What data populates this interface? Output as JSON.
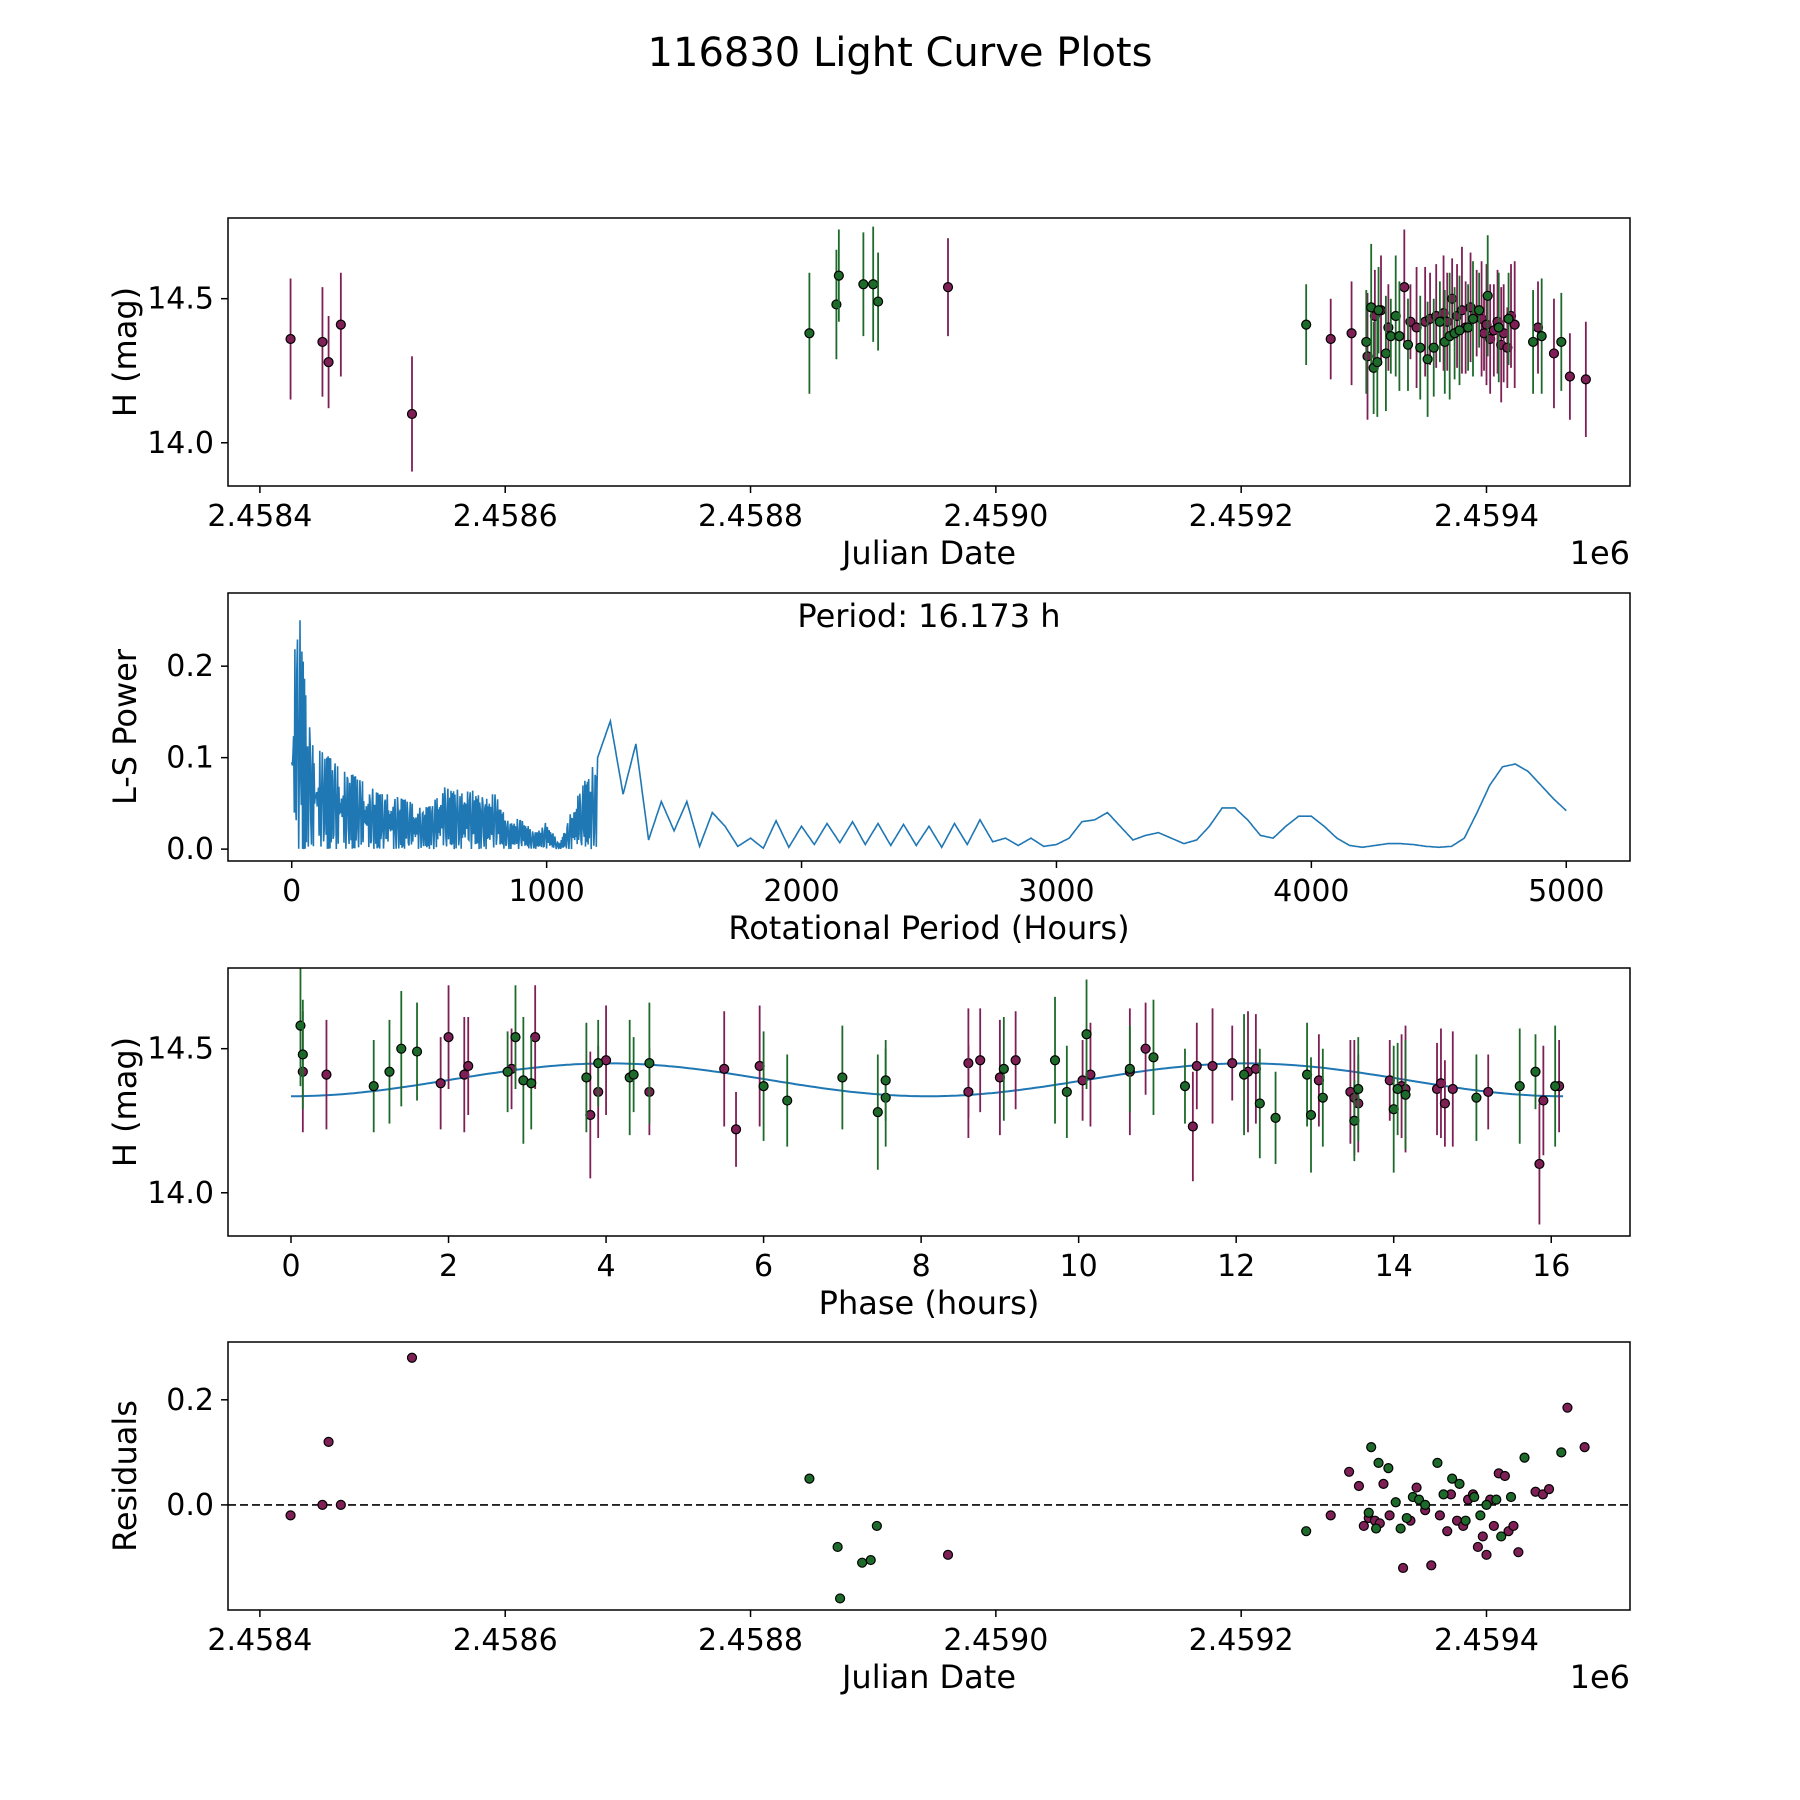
{
  "title": "116830 Light Curve Plots",
  "colors": {
    "zr": "#7e1f55",
    "zg": "#1d6a2b",
    "model": "#1f77b4"
  },
  "chart_data": [
    {
      "type": "scatter",
      "name": "light-curve",
      "xlabel": "Julian Date",
      "ylabel": "H (mag)",
      "offset_text": "1e6",
      "xlim": [
        2458374,
        2459517
      ],
      "ylim": [
        13.85,
        14.78
      ],
      "xticks": [
        2458400,
        2458600,
        2458800,
        2459000,
        2459200,
        2459400
      ],
      "xtick_labels": [
        "2.4584",
        "2.4586",
        "2.4588",
        "2.4590",
        "2.4592",
        "2.4594"
      ],
      "yticks": [
        14.0,
        14.5
      ],
      "ytick_labels": [
        "14.0",
        "14.5"
      ],
      "series": [
        {
          "name": "r",
          "x": [
            2458425,
            2458451,
            2458456,
            2458466,
            2458524,
            2458961,
            2459273,
            2459290,
            2459303,
            2459309,
            2459314,
            2459320,
            2459333,
            2459338,
            2459343,
            2459350,
            2459354,
            2459359,
            2459365,
            2459368,
            2459372,
            2459376,
            2459380,
            2459383,
            2459387,
            2459392,
            2459396,
            2459398,
            2459400,
            2459403,
            2459406,
            2459409,
            2459412,
            2459414,
            2459417,
            2459420,
            2459423,
            2459442,
            2459455,
            2459468,
            2459481
          ],
          "y": [
            14.36,
            14.35,
            14.28,
            14.41,
            14.1,
            14.54,
            14.36,
            14.38,
            14.3,
            14.44,
            14.46,
            14.4,
            14.54,
            14.42,
            14.4,
            14.42,
            14.43,
            14.44,
            14.45,
            14.42,
            14.5,
            14.44,
            14.46,
            14.4,
            14.47,
            14.45,
            14.43,
            14.38,
            14.41,
            14.36,
            14.39,
            14.42,
            14.34,
            14.38,
            14.33,
            14.44,
            14.41,
            14.4,
            14.31,
            14.23,
            14.22
          ]
        },
        {
          "name": "g",
          "x": [
            2458848,
            2458870,
            2458872,
            2458892,
            2458900,
            2458904,
            2459253,
            2459302,
            2459306,
            2459308,
            2459311,
            2459312,
            2459318,
            2459322,
            2459326,
            2459329,
            2459336,
            2459346,
            2459352,
            2459357,
            2459362,
            2459366,
            2459370,
            2459374,
            2459378,
            2459385,
            2459389,
            2459394,
            2459401,
            2459410,
            2459418,
            2459438,
            2459445,
            2459461
          ],
          "y": [
            14.38,
            14.48,
            14.58,
            14.55,
            14.55,
            14.49,
            14.41,
            14.35,
            14.47,
            14.26,
            14.28,
            14.46,
            14.31,
            14.37,
            14.44,
            14.37,
            14.34,
            14.33,
            14.29,
            14.33,
            14.42,
            14.35,
            14.37,
            14.38,
            14.39,
            14.4,
            14.43,
            14.46,
            14.51,
            14.4,
            14.43,
            14.35,
            14.37,
            14.35
          ]
        }
      ]
    },
    {
      "type": "line",
      "name": "periodogram",
      "xlabel": "Rotational Period (Hours)",
      "ylabel": "L-S Power",
      "annotation": "Period: 16.173 h",
      "xlim": [
        -250,
        5250
      ],
      "ylim": [
        -0.013,
        0.28
      ],
      "xticks": [
        0,
        1000,
        2000,
        3000,
        4000,
        5000
      ],
      "xtick_labels": [
        "0",
        "1000",
        "2000",
        "3000",
        "4000",
        "5000"
      ],
      "yticks": [
        0.0,
        0.1,
        0.2
      ],
      "ytick_labels": [
        "0.0",
        "0.1",
        "0.2"
      ],
      "x": [
        0,
        30,
        60,
        100,
        150,
        200,
        250,
        300,
        350,
        400,
        450,
        500,
        550,
        600,
        650,
        700,
        750,
        800,
        850,
        900,
        950,
        1000,
        1050,
        1100,
        1150,
        1200,
        1250,
        1300,
        1350,
        1400,
        1450,
        1500,
        1550,
        1600,
        1650,
        1700,
        1750,
        1800,
        1850,
        1900,
        1950,
        2000,
        2050,
        2100,
        2150,
        2200,
        2250,
        2300,
        2350,
        2400,
        2450,
        2500,
        2550,
        2600,
        2650,
        2700,
        2750,
        2800,
        2850,
        2900,
        2950,
        3000,
        3050,
        3100,
        3150,
        3200,
        3250,
        3300,
        3350,
        3400,
        3450,
        3500,
        3550,
        3600,
        3650,
        3700,
        3750,
        3800,
        3850,
        3900,
        3950,
        4000,
        4050,
        4100,
        4150,
        4200,
        4250,
        4300,
        4350,
        4400,
        4450,
        4500,
        4550,
        4600,
        4650,
        4700,
        4750,
        4800,
        4850,
        4900,
        4950,
        5000
      ],
      "y": [
        0.19,
        0.26,
        0.15,
        0.11,
        0.1,
        0.09,
        0.08,
        0.07,
        0.06,
        0.06,
        0.055,
        0.045,
        0.05,
        0.07,
        0.065,
        0.065,
        0.06,
        0.06,
        0.03,
        0.035,
        0.018,
        0.03,
        0.005,
        0.045,
        0.075,
        0.1,
        0.14,
        0.06,
        0.115,
        0.01,
        0.052,
        0.02,
        0.052,
        0.003,
        0.04,
        0.025,
        0.003,
        0.012,
        0.001,
        0.031,
        0.002,
        0.025,
        0.005,
        0.028,
        0.007,
        0.03,
        0.005,
        0.028,
        0.004,
        0.027,
        0.004,
        0.025,
        0.002,
        0.028,
        0.005,
        0.032,
        0.008,
        0.012,
        0.004,
        0.012,
        0.003,
        0.005,
        0.012,
        0.03,
        0.032,
        0.04,
        0.025,
        0.01,
        0.015,
        0.018,
        0.012,
        0.006,
        0.01,
        0.025,
        0.045,
        0.045,
        0.032,
        0.015,
        0.012,
        0.025,
        0.036,
        0.036,
        0.025,
        0.012,
        0.004,
        0.002,
        0.004,
        0.006,
        0.006,
        0.005,
        0.003,
        0.002,
        0.003,
        0.012,
        0.04,
        0.07,
        0.09,
        0.093,
        0.085,
        0.07,
        0.055,
        0.042
      ]
    },
    {
      "type": "scatter",
      "name": "phase-folded",
      "xlabel": "Phase (hours)",
      "ylabel": "H (mag)",
      "xlim": [
        -0.8,
        17.0
      ],
      "ylim": [
        13.85,
        14.78
      ],
      "xticks": [
        0,
        2,
        4,
        6,
        8,
        10,
        12,
        14,
        16
      ],
      "xtick_labels": [
        "0",
        "2",
        "4",
        "6",
        "8",
        "10",
        "12",
        "14",
        "16"
      ],
      "yticks": [
        14.0,
        14.5
      ],
      "ytick_labels": [
        "14.0",
        "14.5"
      ],
      "series": [
        {
          "name": "r",
          "x": [
            0.15,
            0.45,
            1.9,
            2.0,
            2.2,
            2.25,
            2.8,
            3.1,
            3.8,
            3.9,
            4.0,
            4.55,
            5.5,
            5.65,
            5.95,
            8.6,
            8.6,
            8.75,
            9.0,
            9.2,
            10.05,
            10.15,
            10.65,
            10.85,
            11.45,
            11.5,
            11.7,
            11.95,
            12.15,
            12.25,
            13.05,
            13.45,
            13.5,
            13.55,
            13.95,
            14.1,
            14.15,
            14.55,
            14.6,
            14.65,
            14.75,
            15.2,
            15.85,
            15.9,
            16.1
          ],
          "y": [
            14.42,
            14.41,
            14.38,
            14.54,
            14.41,
            14.44,
            14.43,
            14.54,
            14.27,
            14.35,
            14.46,
            14.35,
            14.43,
            14.22,
            14.44,
            14.45,
            14.35,
            14.46,
            14.4,
            14.46,
            14.39,
            14.41,
            14.42,
            14.5,
            14.23,
            14.44,
            14.44,
            14.45,
            14.42,
            14.43,
            14.39,
            14.35,
            14.33,
            14.31,
            14.39,
            14.37,
            14.36,
            14.36,
            14.38,
            14.31,
            14.36,
            14.35,
            14.1,
            14.32,
            14.37
          ]
        },
        {
          "name": "g",
          "x": [
            0.12,
            0.15,
            1.05,
            1.25,
            1.4,
            1.6,
            2.75,
            2.85,
            2.95,
            3.05,
            3.75,
            3.9,
            4.3,
            4.35,
            4.55,
            6.0,
            6.3,
            7.0,
            7.45,
            7.55,
            7.55,
            9.05,
            9.7,
            9.85,
            10.1,
            10.65,
            10.95,
            11.35,
            12.1,
            12.3,
            12.5,
            12.9,
            12.95,
            13.1,
            13.5,
            13.55,
            14.0,
            14.05,
            14.15,
            15.05,
            15.6,
            15.8,
            16.05
          ],
          "y": [
            14.58,
            14.48,
            14.37,
            14.42,
            14.5,
            14.49,
            14.42,
            14.54,
            14.39,
            14.38,
            14.4,
            14.45,
            14.4,
            14.41,
            14.45,
            14.37,
            14.32,
            14.4,
            14.28,
            14.33,
            14.39,
            14.43,
            14.46,
            14.35,
            14.55,
            14.43,
            14.47,
            14.37,
            14.41,
            14.31,
            14.26,
            14.41,
            14.27,
            14.33,
            14.25,
            14.36,
            14.29,
            14.36,
            14.34,
            14.33,
            14.37,
            14.42,
            14.37
          ]
        }
      ],
      "model": {
        "mean": 14.392,
        "amplitude": 0.057,
        "period": 8.0865,
        "phase0": 2.02,
        "xmax": 16.173
      }
    },
    {
      "type": "scatter",
      "name": "residuals",
      "xlabel": "Julian Date",
      "ylabel": "Residuals",
      "offset_text": "1e6",
      "xlim": [
        2458374,
        2459517
      ],
      "ylim": [
        -0.2,
        0.31
      ],
      "xticks": [
        2458400,
        2458600,
        2458800,
        2459000,
        2459200,
        2459400
      ],
      "xtick_labels": [
        "2.4584",
        "2.4586",
        "2.4588",
        "2.4590",
        "2.4592",
        "2.4594"
      ],
      "yticks": [
        0.0,
        0.2
      ],
      "ytick_labels": [
        "0.0",
        "0.2"
      ],
      "hline": 0.0,
      "series": [
        {
          "name": "r",
          "x": [
            2458425,
            2458451,
            2458456,
            2458466,
            2458524,
            2458961,
            2459273,
            2459288,
            2459296,
            2459300,
            2459304,
            2459309,
            2459313,
            2459316,
            2459321,
            2459332,
            2459338,
            2459343,
            2459350,
            2459355,
            2459362,
            2459368,
            2459371,
            2459376,
            2459381,
            2459385,
            2459389,
            2459393,
            2459397,
            2459400,
            2459403,
            2459406,
            2459410,
            2459415,
            2459418,
            2459422,
            2459426,
            2459440,
            2459446,
            2459451,
            2459466,
            2459480
          ],
          "y": [
            -0.02,
            0.0,
            0.12,
            0.0,
            0.28,
            -0.095,
            -0.02,
            0.063,
            0.036,
            -0.04,
            -0.025,
            -0.03,
            -0.035,
            0.04,
            -0.02,
            -0.12,
            -0.03,
            0.033,
            -0.01,
            -0.115,
            -0.02,
            -0.05,
            0.02,
            -0.03,
            -0.04,
            0.01,
            0.02,
            -0.08,
            -0.06,
            -0.095,
            0.01,
            -0.04,
            0.06,
            0.055,
            -0.05,
            -0.04,
            -0.09,
            0.025,
            0.02,
            0.03,
            0.185,
            0.11
          ]
        },
        {
          "name": "g",
          "x": [
            2458848,
            2458871,
            2458873,
            2458891,
            2458898,
            2458903,
            2459253,
            2459304,
            2459306,
            2459310,
            2459312,
            2459320,
            2459326,
            2459330,
            2459335,
            2459340,
            2459345,
            2459350,
            2459360,
            2459365,
            2459372,
            2459378,
            2459383,
            2459390,
            2459395,
            2459400,
            2459408,
            2459412,
            2459420,
            2459431,
            2459461
          ],
          "y": [
            0.05,
            -0.08,
            -0.178,
            -0.11,
            -0.105,
            -0.04,
            -0.05,
            -0.015,
            0.11,
            -0.045,
            0.08,
            0.07,
            0.005,
            -0.045,
            -0.025,
            0.015,
            0.01,
            0.0,
            0.08,
            0.02,
            0.05,
            0.04,
            -0.03,
            0.015,
            -0.02,
            0.0,
            0.01,
            -0.06,
            0.015,
            0.09,
            0.1
          ]
        }
      ]
    }
  ]
}
